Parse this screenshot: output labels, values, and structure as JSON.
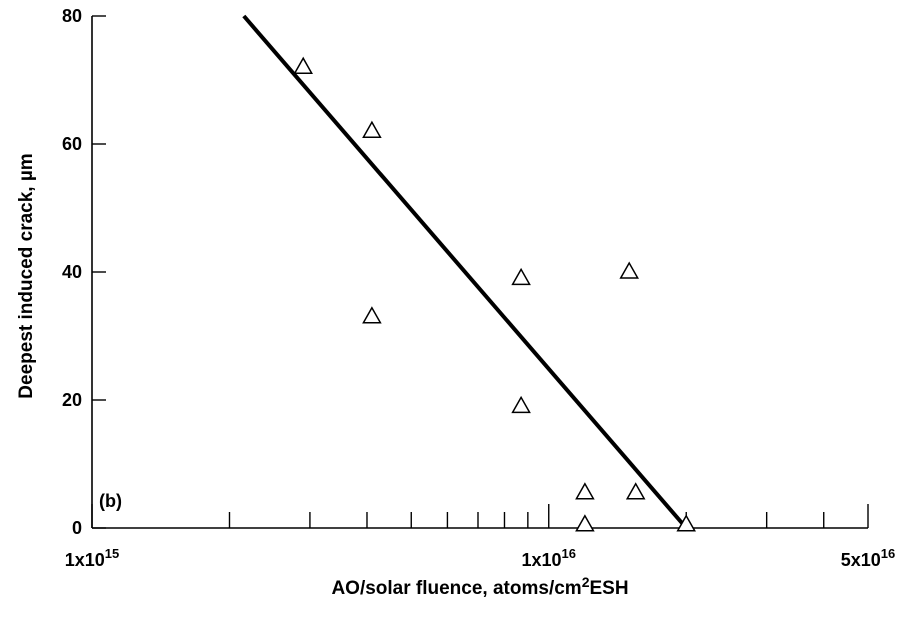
{
  "chart_data": {
    "type": "scatter",
    "panel_label": "(b)",
    "xlabel": {
      "main": "AO/solar fluence, atoms/cm",
      "sup": "2",
      "tail": "ESH"
    },
    "ylabel": "Deepest induced crack, µm",
    "x_scale": "log",
    "xlim": [
      1000000000000000.0,
      5e+16
    ],
    "ylim": [
      0,
      80
    ],
    "x_tick_labels": [
      {
        "value": 1000000000000000.0,
        "base": "1x10",
        "exp": "15"
      },
      {
        "value": 1e+16,
        "base": "1x10",
        "exp": "16"
      },
      {
        "value": 5e+16,
        "base": "5x10",
        "exp": "16"
      }
    ],
    "x_minor_ticks": [
      2000000000000000.0,
      3000000000000000.0,
      4000000000000000.0,
      5000000000000000.0,
      6000000000000000.0,
      7000000000000000.0,
      8000000000000000.0,
      9000000000000000.0,
      2e+16,
      3e+16,
      4e+16
    ],
    "y_ticks": [
      0,
      20,
      40,
      60,
      80
    ],
    "y_tick_labels": [
      "0",
      "20",
      "40",
      "60",
      "80"
    ],
    "grid": false,
    "legend": "none",
    "marker": "open-triangle",
    "points": [
      {
        "x": 2900000000000000.0,
        "y": 72
      },
      {
        "x": 4100000000000000.0,
        "y": 62
      },
      {
        "x": 4100000000000000.0,
        "y": 33
      },
      {
        "x": 8700000000000000.0,
        "y": 39
      },
      {
        "x": 8700000000000000.0,
        "y": 19
      },
      {
        "x": 1.2e+16,
        "y": 5.5
      },
      {
        "x": 1.2e+16,
        "y": 0.5
      },
      {
        "x": 1.5e+16,
        "y": 40
      },
      {
        "x": 1.55e+16,
        "y": 5.5
      },
      {
        "x": 2e+16,
        "y": 0.5
      }
    ],
    "fit_line": [
      {
        "x": 2150000000000000.0,
        "y": 80
      },
      {
        "x": 2e+16,
        "y": 0
      }
    ]
  }
}
